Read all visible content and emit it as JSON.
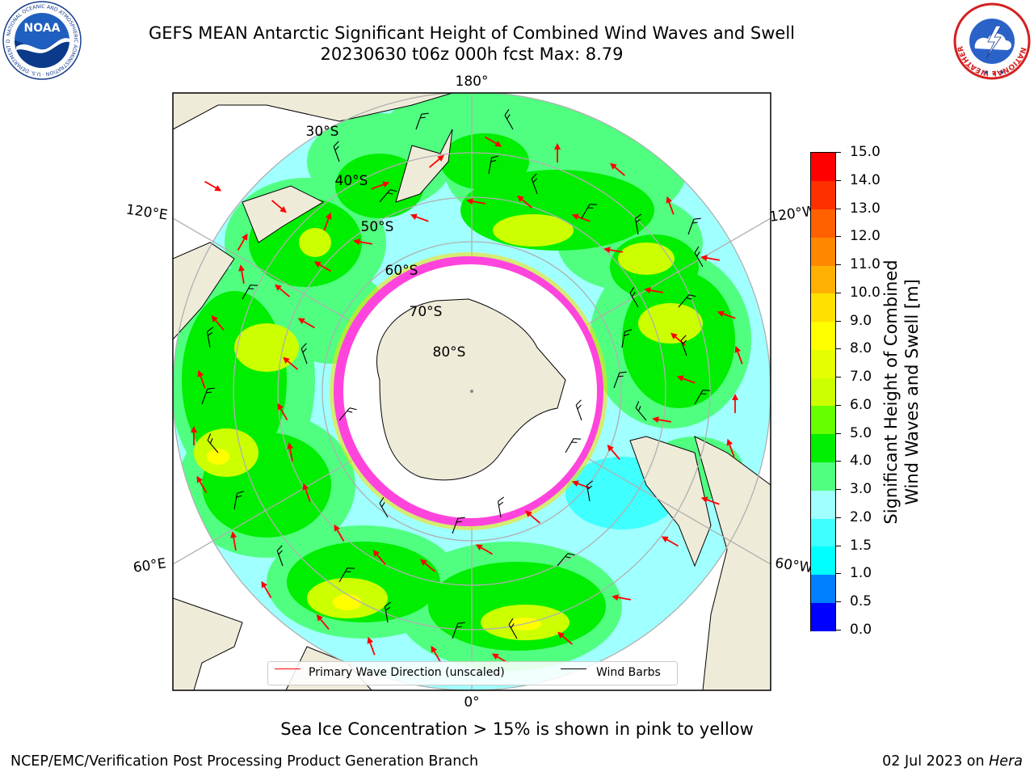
{
  "title_line1": "GEFS MEAN Antarctic Significant Height of Combined Wind Waves and Swell",
  "title_line2": "20230630 t06z 000h fcst   Max: 8.79",
  "map": {
    "longitude_labels": [
      "180°",
      "120°E",
      "120°W",
      "60°E",
      "60°W",
      "0°"
    ],
    "latitude_labels": [
      "30°S",
      "40°S",
      "50°S",
      "60°S",
      "70°S",
      "80°S"
    ],
    "colors": {
      "land": "#efebd9",
      "grid": "#b0b0b0",
      "ice_interior": "#ffffff",
      "ice_edge": "#ff44dd",
      "arrow": "#ff0000",
      "barb": "#000000",
      "background_sea": "#ffffff"
    }
  },
  "legend": {
    "primary_wave": "Primary Wave Direction (unscaled)",
    "primary_wave_color": "#ff0000",
    "wind_barbs": "Wind Barbs",
    "wind_barbs_color": "#000000"
  },
  "colorbar": {
    "title_line1": "Significant Height of Combined",
    "title_line2": "Wind Waves and Swell [m]",
    "ticks": [
      "0.0",
      "0.5",
      "1.0",
      "1.5",
      "2.0",
      "3.0",
      "4.0",
      "5.0",
      "6.0",
      "7.0",
      "8.0",
      "9.0",
      "10.0",
      "11.0",
      "12.0",
      "13.0",
      "14.0",
      "15.0"
    ],
    "colors": [
      "#0000ff",
      "#0080ff",
      "#00ffff",
      "#40ffff",
      "#a0ffff",
      "#50ff80",
      "#00ee00",
      "#66ff00",
      "#ccff00",
      "#e6ff00",
      "#ffff00",
      "#ffe000",
      "#ffb000",
      "#ff8800",
      "#ff6000",
      "#ff3000",
      "#ff0000"
    ]
  },
  "footer": {
    "sea_ice_note": "Sea Ice Concentration > 15% is shown in pink to yellow",
    "credit": "NCEP/EMC/Verification Post Processing Product Generation Branch",
    "date": "02 Jul 2023 on",
    "host": "Hera"
  },
  "logos": {
    "noaa_text": "NOAA",
    "noaa_ring_text": "NATIONAL OCEANIC AND ATMOSPHERIC ADMINISTRATION · U.S. DEPARTMENT OF COMMERCE ·",
    "nws_ring_text": "NATIONAL WEATHER SERVICE"
  }
}
